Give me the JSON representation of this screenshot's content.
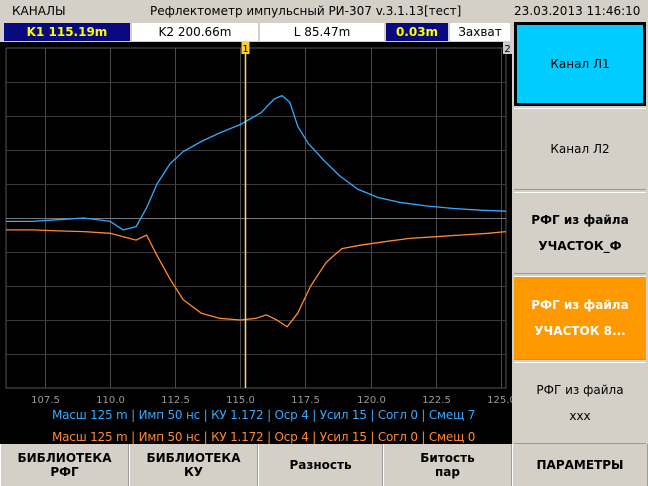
{
  "titlebar": {
    "left": "КАНАЛЫ",
    "center": "Рефлектометр импульсный РИ-307 v.3.1.13",
    "tag": "[тест]",
    "datetime": "23.03.2013 11:46:10"
  },
  "status": {
    "k1": "K1 115.19m",
    "k2": "K2 200.66m",
    "l": "L 85.47m",
    "delta": "0.03m",
    "capture": "Захват"
  },
  "cursors": {
    "c1": "1",
    "c2": "2",
    "c1_x": 115.19
  },
  "chart_data": {
    "type": "line",
    "xlim": [
      106.0,
      125.2
    ],
    "ylim": [
      0,
      1
    ],
    "x_ticks": [
      "107.5",
      "110.0",
      "112.5",
      "115.0",
      "117.5",
      "120.0",
      "122.5",
      "125.0"
    ],
    "grid": true,
    "series": [
      {
        "color": "#33aaff",
        "points": [
          [
            106.0,
            0.49
          ],
          [
            107.0,
            0.49
          ],
          [
            108.0,
            0.495
          ],
          [
            109.0,
            0.5
          ],
          [
            110.0,
            0.49
          ],
          [
            110.5,
            0.465
          ],
          [
            111.0,
            0.475
          ],
          [
            111.4,
            0.53
          ],
          [
            111.8,
            0.6
          ],
          [
            112.3,
            0.66
          ],
          [
            112.8,
            0.695
          ],
          [
            113.5,
            0.725
          ],
          [
            114.2,
            0.75
          ],
          [
            115.0,
            0.775
          ],
          [
            115.8,
            0.81
          ],
          [
            116.3,
            0.85
          ],
          [
            116.6,
            0.86
          ],
          [
            116.9,
            0.84
          ],
          [
            117.2,
            0.77
          ],
          [
            117.6,
            0.72
          ],
          [
            118.2,
            0.67
          ],
          [
            118.8,
            0.625
          ],
          [
            119.5,
            0.585
          ],
          [
            120.3,
            0.56
          ],
          [
            121.2,
            0.545
          ],
          [
            122.2,
            0.535
          ],
          [
            123.2,
            0.528
          ],
          [
            124.2,
            0.523
          ],
          [
            125.2,
            0.52
          ]
        ]
      },
      {
        "color": "#ff8833",
        "points": [
          [
            106.0,
            0.465
          ],
          [
            107.0,
            0.465
          ],
          [
            108.0,
            0.462
          ],
          [
            109.0,
            0.46
          ],
          [
            110.0,
            0.455
          ],
          [
            110.5,
            0.445
          ],
          [
            111.0,
            0.435
          ],
          [
            111.4,
            0.45
          ],
          [
            111.8,
            0.39
          ],
          [
            112.3,
            0.32
          ],
          [
            112.8,
            0.26
          ],
          [
            113.5,
            0.22
          ],
          [
            114.2,
            0.205
          ],
          [
            115.0,
            0.2
          ],
          [
            115.6,
            0.205
          ],
          [
            116.0,
            0.215
          ],
          [
            116.4,
            0.2
          ],
          [
            116.8,
            0.18
          ],
          [
            117.2,
            0.22
          ],
          [
            117.7,
            0.3
          ],
          [
            118.3,
            0.37
          ],
          [
            118.9,
            0.41
          ],
          [
            119.6,
            0.42
          ],
          [
            120.5,
            0.43
          ],
          [
            121.5,
            0.44
          ],
          [
            122.5,
            0.445
          ],
          [
            123.5,
            0.45
          ],
          [
            124.5,
            0.455
          ],
          [
            125.2,
            0.46
          ]
        ]
      }
    ]
  },
  "legend": {
    "line1": "Масш 125 m | Имп 50 нс | КУ 1.172 | Оср 4 | Усил 15 | Согл 0 | Смещ 7",
    "line2": "Масш 125 m | Имп 50 нс | КУ 1.172 | Оср 4 | Усил 15 | Согл 0 | Смещ 0",
    "color1": "#33aaff",
    "color2": "#ff8833"
  },
  "sidebar": {
    "ch1": "Канал Л1",
    "ch2": "Канал Л2",
    "rfg1_title": "РФГ из файла",
    "rfg1_name": "УЧАСТОК_Ф",
    "rfg2_title": "РФГ из файла",
    "rfg2_name": "УЧАСТОК 8...",
    "rfg3_title": "РФГ из файла",
    "rfg3_name": "xxx"
  },
  "bottom": {
    "lib_rfg_1": "БИБЛИОТЕКА",
    "lib_rfg_2": "РФГ",
    "lib_ku_1": "БИБЛИОТЕКА",
    "lib_ku_2": "КУ",
    "diff": "Разность",
    "bit_1": "Битость",
    "bit_2": "пар",
    "params": "ПАРАМЕТРЫ"
  }
}
